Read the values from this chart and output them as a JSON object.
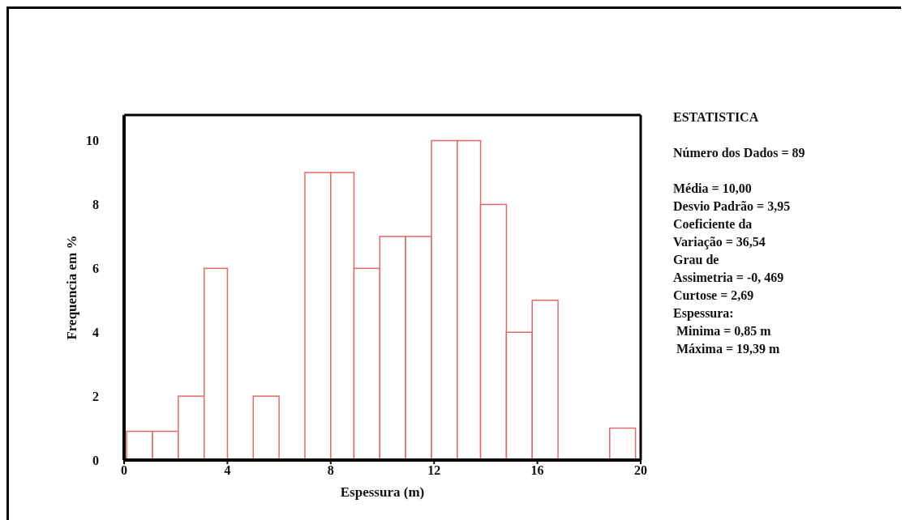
{
  "chart_data": {
    "type": "histogram",
    "xlabel": "Espessura (m)",
    "ylabel": "Frequencia em %",
    "bins": [
      0.1,
      1.1,
      2.1,
      3.1,
      4.0,
      5.0,
      6.0,
      7.0,
      8.0,
      8.9,
      9.9,
      10.9,
      11.9,
      12.9,
      13.8,
      14.8,
      15.8,
      16.8,
      18.8,
      19.8
    ],
    "values": [
      0.9,
      0.9,
      2,
      6,
      0,
      2,
      0,
      9,
      9,
      6,
      7,
      7,
      10,
      10,
      8,
      4,
      5,
      0,
      1
    ],
    "color": "#e06a6a",
    "xlim": [
      0,
      20
    ],
    "xticks": [
      0,
      4,
      8,
      12,
      16,
      20
    ],
    "ylim": [
      0,
      10.8
    ],
    "yticks": [
      0,
      2,
      4,
      6,
      8,
      10
    ],
    "grid": false,
    "legend": false,
    "annotations": [
      "ESTATISTICA",
      "Número dos Dados = 89",
      "Média = 10,00",
      "Desvio Padrão = 3,95",
      "Coeficiente da",
      "Variação = 36,54",
      "Grau de",
      "Assimetria = -0, 469",
      "Curtose = 2,69",
      "Espessura:",
      " Minima = 0,85 m",
      " Máxima = 19,39 m"
    ]
  }
}
